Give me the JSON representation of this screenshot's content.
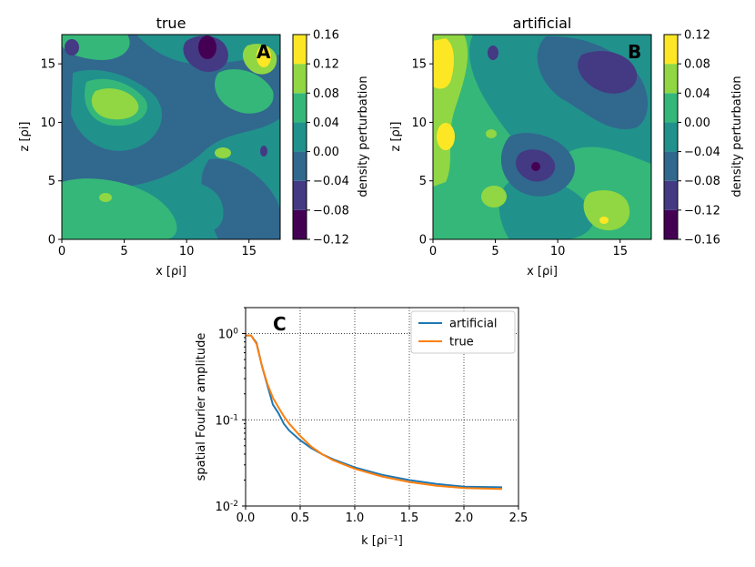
{
  "chart_data": [
    {
      "type": "heatmap",
      "panel": "A",
      "title": "true",
      "xlabel": "x [ρi]",
      "ylabel": "z [ρi]",
      "xlim": [
        0,
        17.5
      ],
      "ylim": [
        0,
        17.5
      ],
      "xticks": [
        0,
        5,
        10,
        15
      ],
      "yticks": [
        0,
        5,
        10,
        15
      ],
      "colorbar": {
        "label": "density perturbation",
        "levels": [
          -0.12,
          -0.08,
          -0.04,
          0.0,
          0.04,
          0.08,
          0.12,
          0.16
        ],
        "tick_labels": [
          "−0.12",
          "−0.08",
          "−0.04",
          "0.00",
          "0.04",
          "0.08",
          "0.12",
          "0.16"
        ]
      }
    },
    {
      "type": "heatmap",
      "panel": "B",
      "title": "artificial",
      "xlabel": "x [ρi]",
      "ylabel": "z [ρi]",
      "xlim": [
        0,
        17.5
      ],
      "ylim": [
        0,
        17.5
      ],
      "xticks": [
        0,
        5,
        10,
        15
      ],
      "yticks": [
        0,
        5,
        10,
        15
      ],
      "colorbar": {
        "label": "density perturbation",
        "levels": [
          -0.16,
          -0.12,
          -0.08,
          -0.04,
          0.0,
          0.04,
          0.08,
          0.12
        ],
        "tick_labels": [
          "−0.16",
          "−0.12",
          "−0.08",
          "−0.04",
          "0.00",
          "0.04",
          "0.08",
          "0.12"
        ]
      }
    },
    {
      "type": "line",
      "panel": "C",
      "title": "",
      "xlabel": "k [ρi⁻¹]",
      "ylabel": "spatial Fourier amplitude",
      "yscale": "log",
      "xlim": [
        0,
        2.5
      ],
      "ylim": [
        0.01,
        2
      ],
      "xticks": [
        0.0,
        0.5,
        1.0,
        1.5,
        2.0,
        2.5
      ],
      "ytick_labels": [
        "10-2",
        "10-1",
        "100"
      ],
      "grid": true,
      "legend": "top-right",
      "series": [
        {
          "name": "artificial",
          "color": "#1f77b4",
          "x": [
            0.0,
            0.05,
            0.1,
            0.15,
            0.2,
            0.25,
            0.3,
            0.35,
            0.4,
            0.5,
            0.6,
            0.7,
            0.8,
            1.0,
            1.25,
            1.5,
            1.75,
            2.0,
            2.35
          ],
          "y": [
            0.95,
            0.95,
            0.78,
            0.42,
            0.25,
            0.15,
            0.12,
            0.09,
            0.075,
            0.058,
            0.047,
            0.04,
            0.035,
            0.028,
            0.023,
            0.02,
            0.018,
            0.0168,
            0.0165
          ]
        },
        {
          "name": "true",
          "color": "#ff7f0e",
          "x": [
            0.0,
            0.05,
            0.1,
            0.15,
            0.2,
            0.25,
            0.3,
            0.35,
            0.4,
            0.5,
            0.6,
            0.7,
            0.8,
            1.0,
            1.25,
            1.5,
            1.75,
            2.0,
            2.35
          ],
          "y": [
            0.95,
            0.95,
            0.76,
            0.42,
            0.26,
            0.18,
            0.14,
            0.11,
            0.09,
            0.065,
            0.049,
            0.04,
            0.034,
            0.027,
            0.022,
            0.019,
            0.0172,
            0.0162,
            0.0158
          ]
        }
      ]
    }
  ],
  "panel_labels": [
    "A",
    "B",
    "C"
  ],
  "colors": {
    "viridis": [
      "#440154",
      "#414487",
      "#2a788e",
      "#22a884",
      "#7ad151",
      "#fde725"
    ],
    "levels7": [
      "#440154",
      "#443983",
      "#31688e",
      "#21918c",
      "#35b779",
      "#90d743",
      "#fde725"
    ],
    "bg_A": "#21918c",
    "bg_B": "#35b779"
  }
}
